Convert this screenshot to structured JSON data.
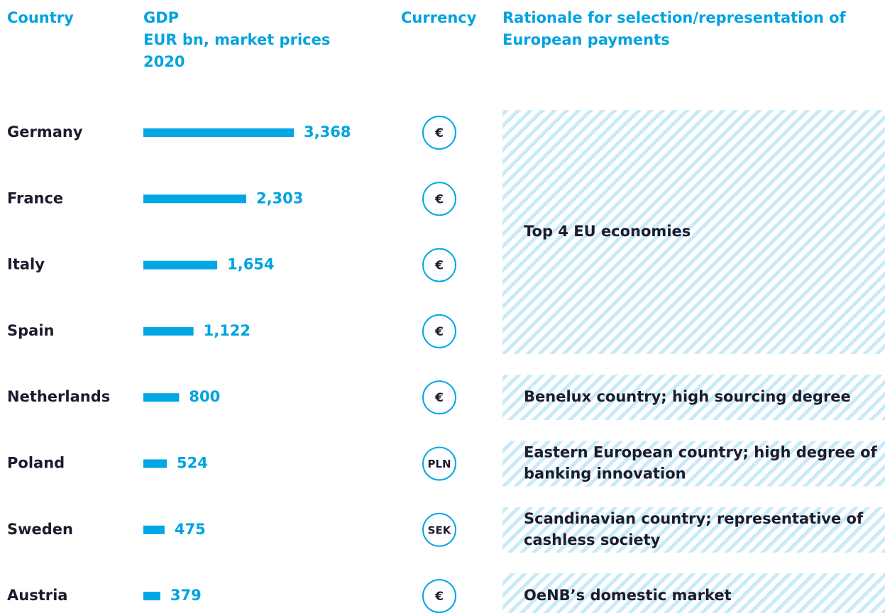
{
  "chart_data": {
    "type": "bar",
    "headers": {
      "country": [
        "Country"
      ],
      "gdp": [
        "GDP",
        "EUR bn, market prices",
        "2020"
      ],
      "currency": [
        "Currency"
      ],
      "rationale": [
        "Rationale for selection/representation of",
        "European payments"
      ]
    },
    "categories": [
      "Germany",
      "France",
      "Italy",
      "Spain",
      "Netherlands",
      "Poland",
      "Sweden",
      "Austria"
    ],
    "values": [
      3368,
      2303,
      1654,
      1122,
      800,
      524,
      475,
      379
    ],
    "value_labels": [
      "3,368",
      "2,303",
      "1,654",
      "1,122",
      "800",
      "524",
      "475",
      "379"
    ],
    "currencies": [
      "€",
      "€",
      "€",
      "€",
      "€",
      "PLN",
      "SEK",
      "€"
    ],
    "rationales": [
      [
        "Top 4 EU economies"
      ],
      null,
      null,
      null,
      [
        "Benelux country; high sourcing degree"
      ],
      [
        "Eastern European country; high degree of",
        "banking innovation"
      ],
      [
        "Scandinavian country; representative of",
        "cashless society"
      ],
      [
        "OeNB’s domestic market"
      ]
    ],
    "color": "#00a6e6"
  }
}
